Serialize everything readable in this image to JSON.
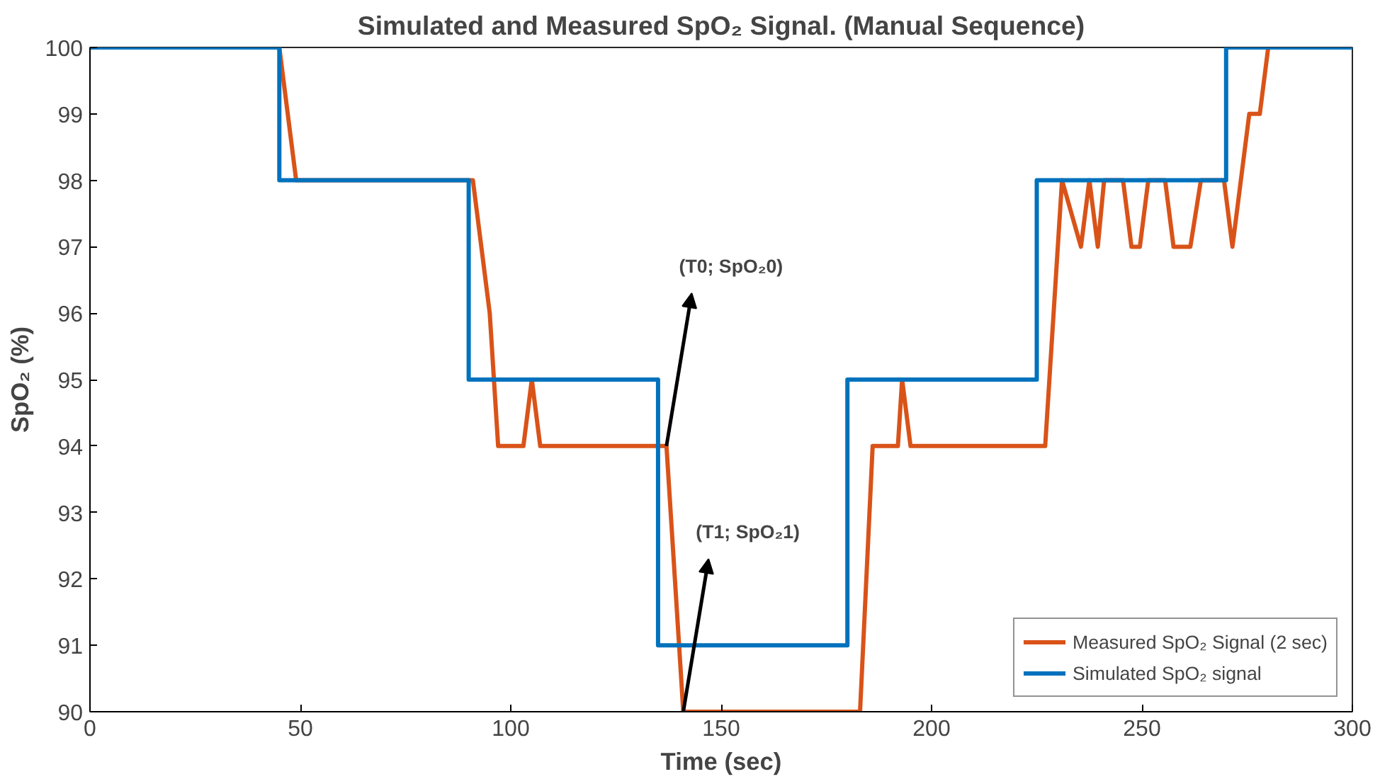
{
  "chart_data": {
    "type": "line",
    "title": "Simulated and Measured SpO₂ Signal. (Manual Sequence)",
    "xlabel": "Time (sec)",
    "ylabel": "SpO₂ (%)",
    "xlim": [
      0,
      300
    ],
    "ylim": [
      90,
      100
    ],
    "xticks": [
      0,
      50,
      100,
      150,
      200,
      250,
      300
    ],
    "yticks": [
      90,
      91,
      92,
      93,
      94,
      95,
      96,
      97,
      98,
      99,
      100
    ],
    "grid": false,
    "legend": "bottom right",
    "line_style": "solid",
    "marker": "none",
    "series": [
      {
        "name": "Measured SpO₂ Signal (2 sec)",
        "color": "#d95319",
        "x": [
          0,
          45,
          49,
          91,
          95,
          97,
          103,
          105,
          107,
          137,
          141,
          183,
          186,
          192,
          193,
          195,
          227,
          231,
          235.5,
          237.5,
          239.5,
          241,
          245.5,
          247.5,
          249.5,
          251.5,
          255.5,
          257.5,
          261.5,
          264,
          269.5,
          271.5,
          275.5,
          278,
          280
        ],
        "values": [
          100,
          100,
          98,
          98,
          96,
          94,
          94,
          95,
          94,
          94,
          90,
          90,
          94,
          94,
          95,
          94,
          94,
          98,
          97,
          98,
          97,
          98,
          98,
          97,
          97,
          98,
          98,
          97,
          97,
          98,
          98,
          97,
          99,
          99,
          100
        ]
      },
      {
        "name": "Simulated SpO₂ signal",
        "color": "#0072bd",
        "type": "step",
        "x": [
          0,
          45,
          90,
          135,
          180,
          225,
          270,
          300
        ],
        "values": [
          100,
          98,
          95,
          91,
          95,
          98,
          100,
          100
        ]
      }
    ],
    "annotations": [
      {
        "text": "(T0; SpO₂0)",
        "x": 137,
        "y": 94
      },
      {
        "text": "(T1; SpO₂1)",
        "x": 141,
        "y": 90
      }
    ]
  }
}
